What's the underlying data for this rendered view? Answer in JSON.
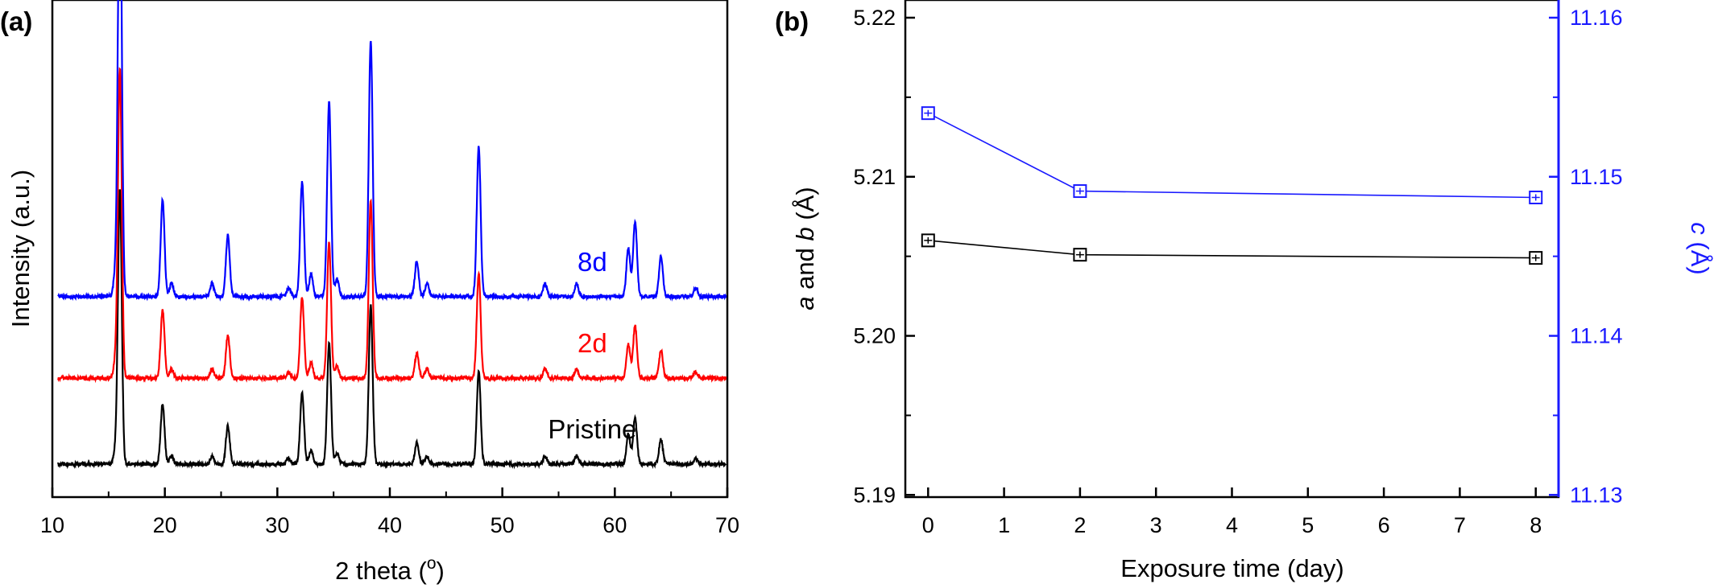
{
  "colors": {
    "black": "#000000",
    "red": "#ff0000",
    "blue": "#0000ff",
    "axis_blue": "#1a1aff"
  },
  "chart_data": [
    {
      "type": "line",
      "panel_label": "(a)",
      "xlabel": "2 theta (",
      "xlabel_sup": "o",
      "xlabel_end": ")",
      "ylabel": "Intensity (a.u.)",
      "xlim": [
        10,
        70
      ],
      "xticks": [
        "10",
        "20",
        "30",
        "40",
        "50",
        "60",
        "70"
      ],
      "grid": false,
      "peaks": [
        {
          "x": 15.6,
          "h": 0.05
        },
        {
          "x": 16.0,
          "h": 1.0
        },
        {
          "x": 19.8,
          "h": 0.22
        },
        {
          "x": 20.6,
          "h": 0.03
        },
        {
          "x": 24.2,
          "h": 0.03
        },
        {
          "x": 25.6,
          "h": 0.14
        },
        {
          "x": 31.0,
          "h": 0.02
        },
        {
          "x": 32.2,
          "h": 0.26
        },
        {
          "x": 33.0,
          "h": 0.05
        },
        {
          "x": 34.6,
          "h": 0.44
        },
        {
          "x": 35.3,
          "h": 0.04
        },
        {
          "x": 38.3,
          "h": 0.58
        },
        {
          "x": 42.4,
          "h": 0.08
        },
        {
          "x": 43.3,
          "h": 0.03
        },
        {
          "x": 47.9,
          "h": 0.34
        },
        {
          "x": 53.8,
          "h": 0.03
        },
        {
          "x": 56.6,
          "h": 0.03
        },
        {
          "x": 61.2,
          "h": 0.11
        },
        {
          "x": 61.8,
          "h": 0.17
        },
        {
          "x": 64.1,
          "h": 0.09
        },
        {
          "x": 67.2,
          "h": 0.02
        }
      ],
      "series": [
        {
          "name": "Pristine",
          "color": "#000000",
          "offset": 0.0,
          "scale": 0.62
        },
        {
          "name": "2d",
          "color": "#ff0000",
          "offset": 0.195,
          "scale": 0.7
        },
        {
          "name": "8d",
          "color": "#0000ff",
          "offset": 0.38,
          "scale": 1.0
        }
      ]
    },
    {
      "type": "scatter",
      "panel_label": "(b)",
      "xlabel": "Exposure time (day)",
      "ylabel_left": {
        "i1": "a",
        "mid": " and ",
        "i2": "b",
        "unit": " (Å)"
      },
      "ylabel_right": {
        "i": "c",
        "unit": " (Å)"
      },
      "x": [
        0,
        2,
        8
      ],
      "xlim": [
        -0.3,
        8.3
      ],
      "xticks": [
        "0",
        "1",
        "2",
        "3",
        "4",
        "5",
        "6",
        "7",
        "8"
      ],
      "ylim_left": [
        5.19,
        5.22
      ],
      "yticks_left": [
        "5.19",
        "5.20",
        "5.21",
        "5.22"
      ],
      "ylim_right": [
        11.13,
        11.16
      ],
      "yticks_right": [
        "11.13",
        "11.14",
        "11.15",
        "11.16"
      ],
      "grid": false,
      "series": [
        {
          "name": "a and b",
          "axis": "left",
          "color": "#000000",
          "values": [
            5.206,
            5.2051,
            5.2049
          ]
        },
        {
          "name": "c",
          "axis": "right",
          "color": "#1a1aff",
          "values": [
            11.154,
            11.1491,
            11.1487
          ]
        }
      ]
    }
  ]
}
